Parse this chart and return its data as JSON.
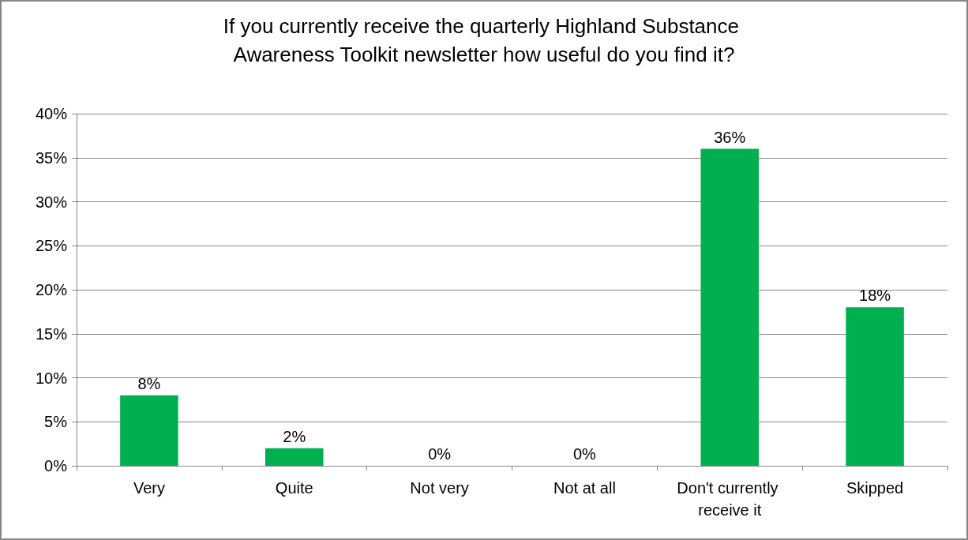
{
  "chart_data": {
    "type": "bar",
    "title": "If you currently receive the quarterly Highland Substance Awareness Toolkit newsletter how useful do you find it?",
    "categories": [
      "Very",
      "Quite",
      "Not very",
      "Not at all",
      "Don't currently receive it",
      "Skipped"
    ],
    "values": [
      8,
      2,
      0,
      0,
      36,
      18
    ],
    "value_labels": [
      "8%",
      "2%",
      "0%",
      "0%",
      "36%",
      "18%"
    ],
    "color": "#00b050",
    "ylim": [
      0,
      40
    ],
    "yticks": [
      {
        "value": 0,
        "label": "0%"
      },
      {
        "value": 5,
        "label": "5%"
      },
      {
        "value": 10,
        "label": "10%"
      },
      {
        "value": 15,
        "label": "15%"
      },
      {
        "value": 20,
        "label": "20%"
      },
      {
        "value": 25,
        "label": "25%"
      },
      {
        "value": 30,
        "label": "30%"
      },
      {
        "value": 35,
        "label": "35%"
      },
      {
        "value": 40,
        "label": "40%"
      }
    ],
    "grid": "y"
  }
}
